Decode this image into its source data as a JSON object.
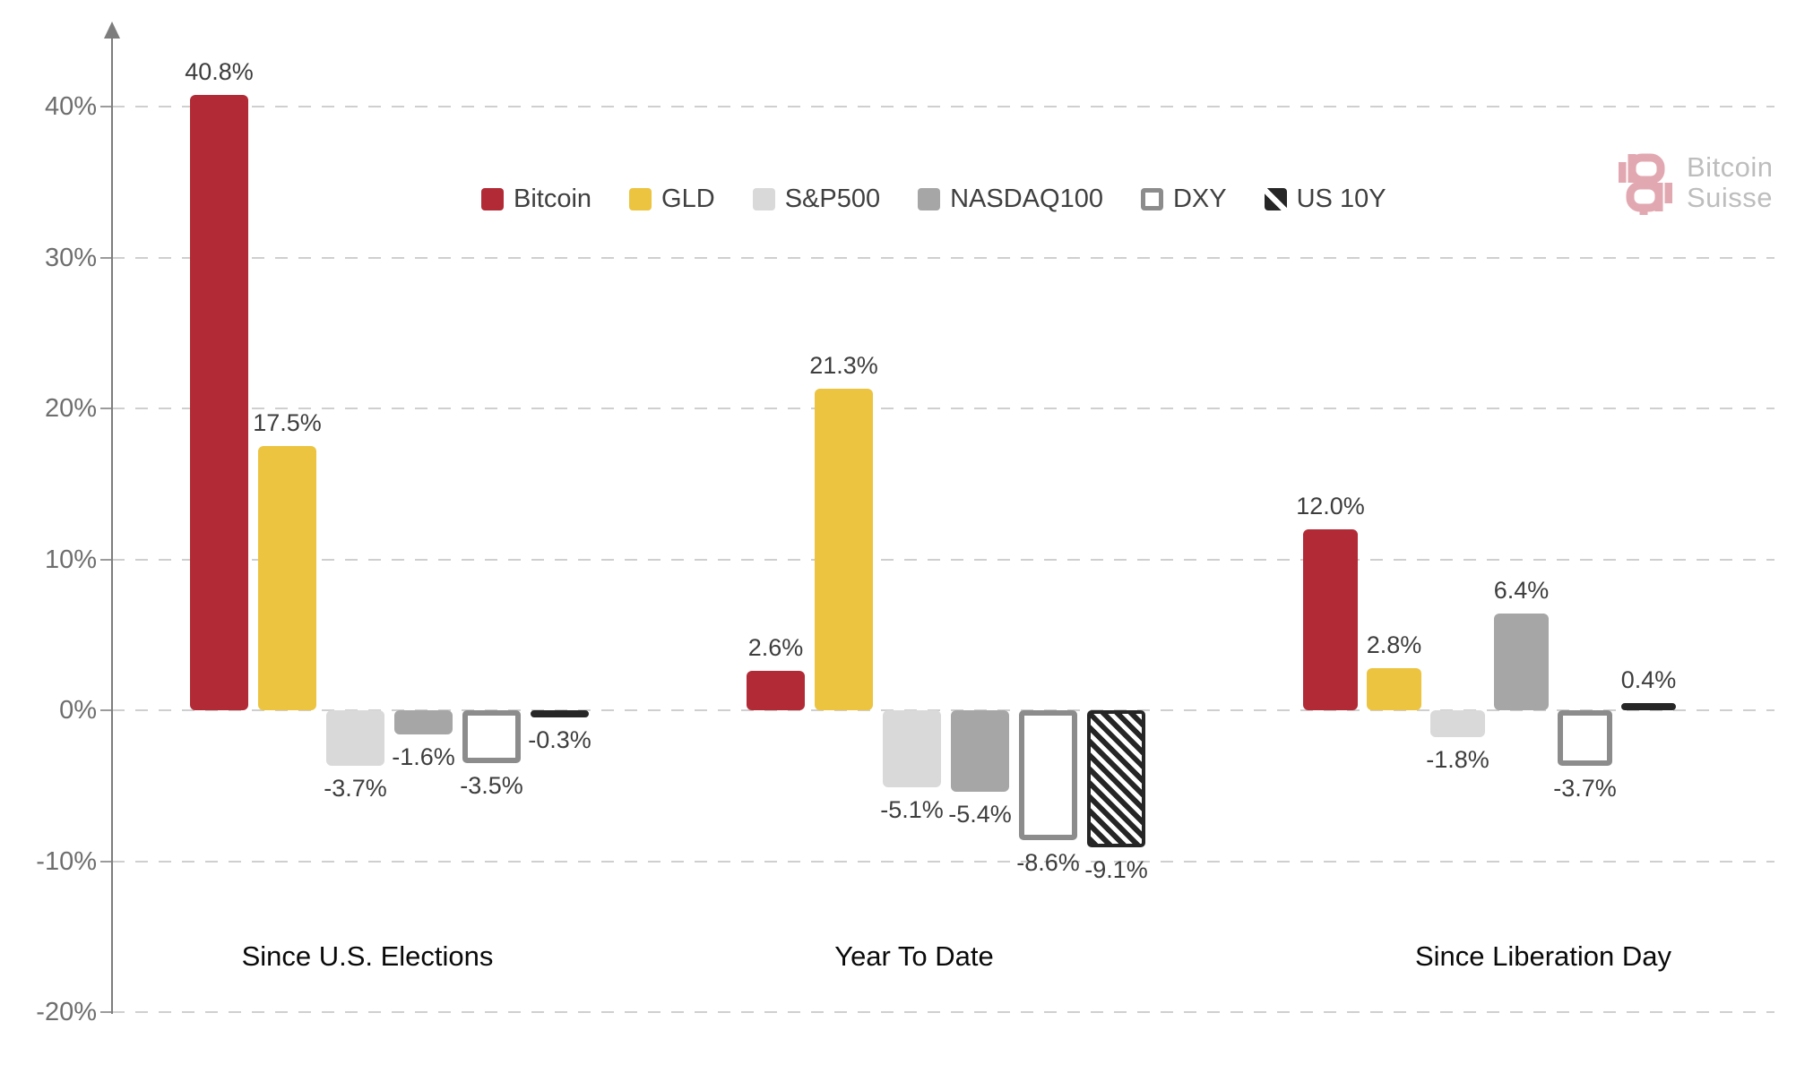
{
  "chart_data": {
    "type": "bar",
    "title": "",
    "categories": [
      "Since U.S. Elections",
      "Year To Date",
      "Since Liberation Day"
    ],
    "series": [
      {
        "name": "Bitcoin",
        "style": "solid",
        "color": "#B22A35",
        "values": [
          40.8,
          2.6,
          12.0
        ],
        "labels": [
          "40.8%",
          "2.6%",
          "12.0%"
        ]
      },
      {
        "name": "GLD",
        "style": "solid",
        "color": "#ECC440",
        "values": [
          17.5,
          21.3,
          2.8
        ],
        "labels": [
          "17.5%",
          "21.3%",
          "2.8%"
        ]
      },
      {
        "name": "S&P500",
        "style": "solid",
        "color": "#D9D9D9",
        "values": [
          -3.7,
          -5.1,
          -1.8
        ],
        "labels": [
          "-3.7%",
          "-5.1%",
          "-1.8%"
        ]
      },
      {
        "name": "NASDAQ100",
        "style": "solid",
        "color": "#A6A6A6",
        "values": [
          -1.6,
          -5.4,
          6.4
        ],
        "labels": [
          "-1.6%",
          "-5.4%",
          "6.4%"
        ]
      },
      {
        "name": "DXY",
        "style": "outline",
        "color": "#FFFFFF",
        "border_color": "#8C8C8C",
        "values": [
          -3.5,
          -8.6,
          -3.7
        ],
        "labels": [
          "-3.5%",
          "-8.6%",
          "-3.7%"
        ]
      },
      {
        "name": "US 10Y",
        "style": "hatch",
        "color": "#262626",
        "values": [
          -0.3,
          -9.1,
          0.4
        ],
        "labels": [
          "-0.3%",
          "-9.1%",
          "0.4%"
        ]
      }
    ],
    "y_axis": {
      "ticks": [
        {
          "label": "40%",
          "value": 40
        },
        {
          "label": "30%",
          "value": 30
        },
        {
          "label": "20%",
          "value": 20
        },
        {
          "label": "10%",
          "value": 10
        },
        {
          "label": "0%",
          "value": 0
        },
        {
          "label": "-10%",
          "value": -10
        },
        {
          "label": "-20%",
          "value": -20
        }
      ],
      "range": [
        -20,
        45
      ],
      "grid": "dashed"
    },
    "legend_position": "top-center"
  },
  "branding": {
    "logo_line1": "Bitcoin",
    "logo_line2": "Suisse",
    "logo_mark_color": "#E2A8B1",
    "logo_text_color": "#BDBDBD"
  }
}
